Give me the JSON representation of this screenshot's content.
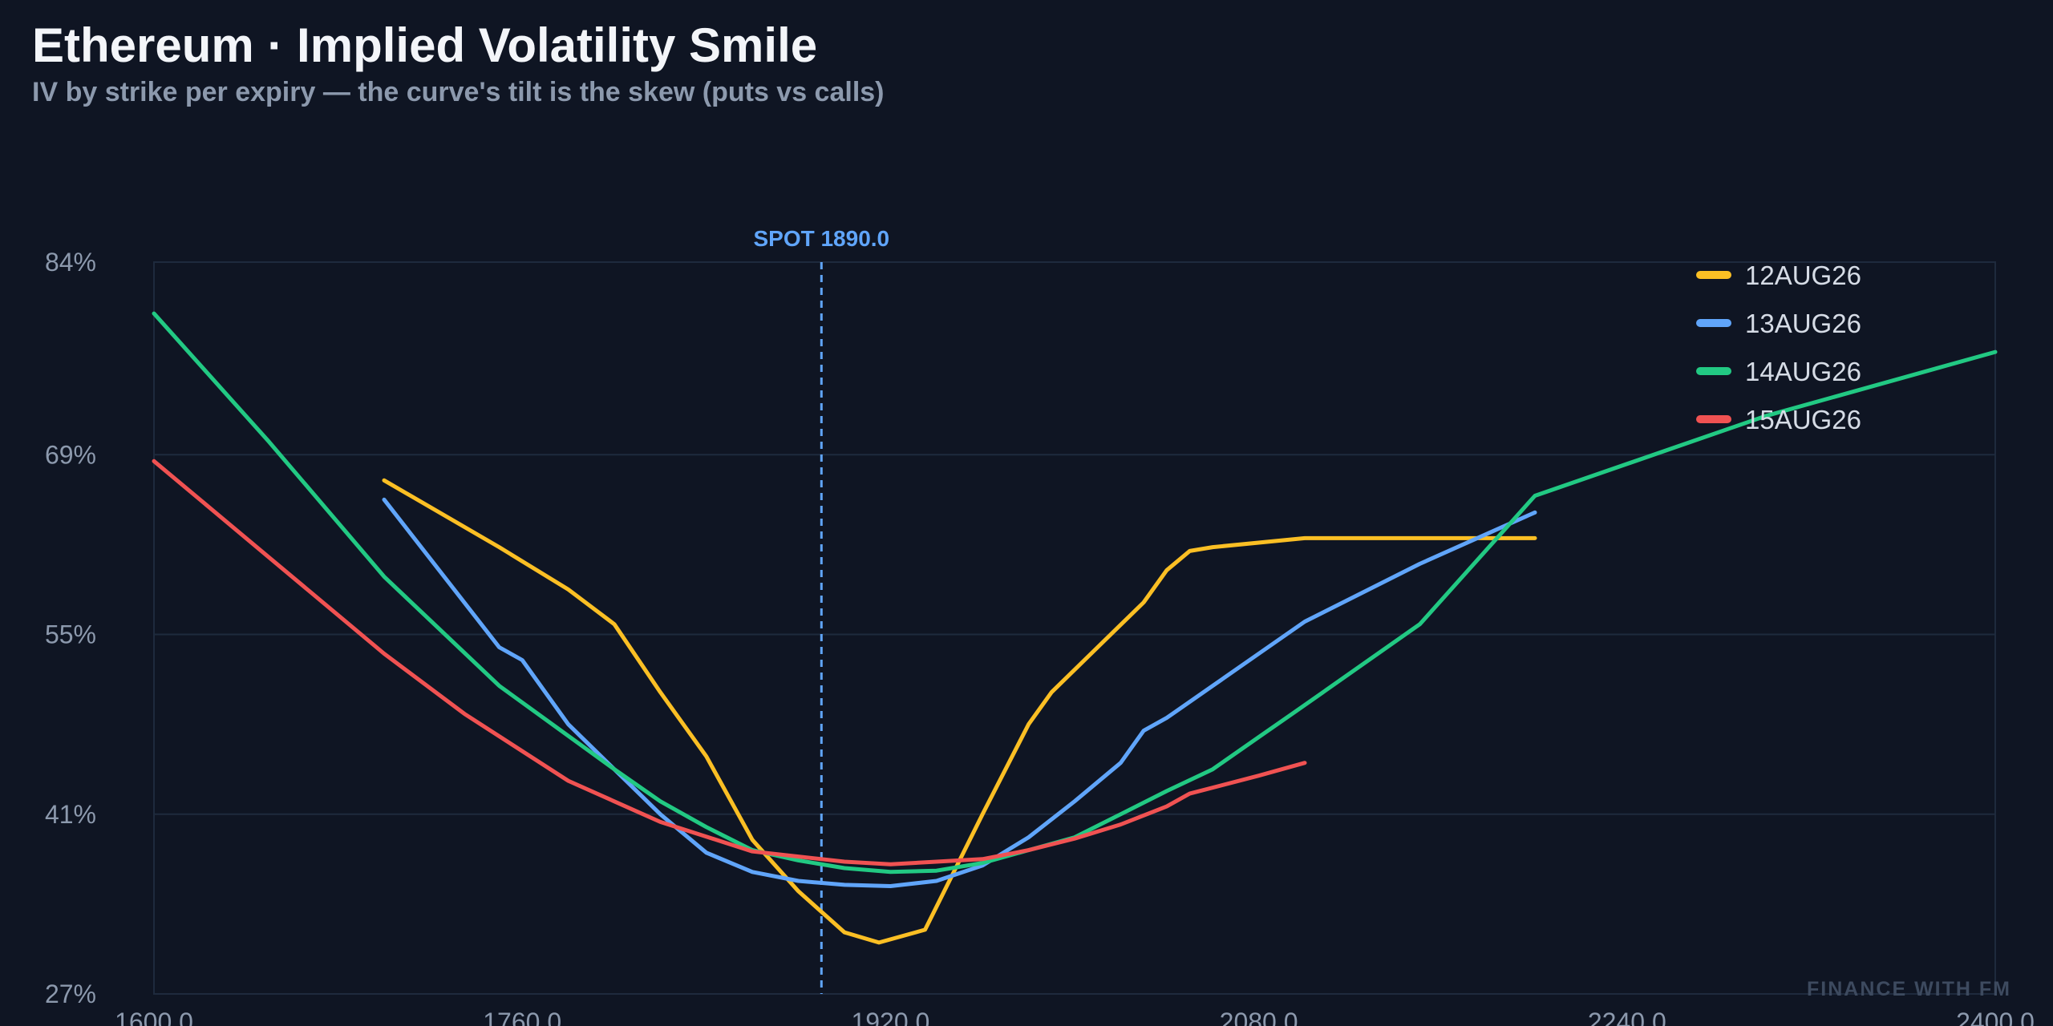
{
  "title": "Ethereum · Implied Volatility Smile",
  "subtitle": "IV by strike per expiry — the curve's tilt is the skew (puts vs calls)",
  "watermark": "FINANCE WITH FM",
  "chart_data": {
    "type": "line",
    "title": "Ethereum · Implied Volatility Smile",
    "subtitle": "IV by strike per expiry — the curve's tilt is the skew (puts vs calls)",
    "xlabel": "",
    "ylabel": "",
    "xlim": [
      1600,
      2400
    ],
    "ylim": [
      27,
      84
    ],
    "x_ticks": [
      1600,
      1760,
      1920,
      2080,
      2240,
      2400
    ],
    "x_tick_labels": [
      "1600.0",
      "1760.0",
      "1920.0",
      "2080.0",
      "2240.0",
      "2400.0"
    ],
    "y_ticks": [
      27,
      41,
      55,
      69,
      84
    ],
    "y_tick_labels": [
      "27%",
      "41%",
      "55%",
      "69%",
      "84%"
    ],
    "grid": true,
    "legend_position": "top-right",
    "spot": {
      "value": 1890.0,
      "label": "SPOT 1890.0",
      "color": "#60a5fa"
    },
    "series": [
      {
        "name": "12AUG26",
        "color": "#fbbf24",
        "x": [
          1700,
          1750,
          1780,
          1800,
          1820,
          1840,
          1860,
          1880,
          1900,
          1915,
          1935,
          1960,
          1980,
          1990,
          2010,
          2030,
          2040,
          2050,
          2060,
          2100,
          2150,
          2200
        ],
        "y": [
          67,
          61.8,
          58.5,
          55.8,
          50.5,
          45.5,
          39,
          35,
          31.8,
          31,
          32,
          41,
          48,
          50.5,
          54,
          57.5,
          60,
          61.5,
          61.8,
          62.5,
          62.5,
          62.5
        ]
      },
      {
        "name": "13AUG26",
        "color": "#60a5fa",
        "x": [
          1700,
          1750,
          1760,
          1780,
          1800,
          1820,
          1840,
          1860,
          1880,
          1900,
          1920,
          1940,
          1960,
          1980,
          2000,
          2020,
          2030,
          2040,
          2060,
          2080,
          2100,
          2150,
          2200
        ],
        "y": [
          65.5,
          54,
          53,
          48,
          44.5,
          41,
          38,
          36.5,
          35.8,
          35.5,
          35.4,
          35.8,
          37,
          39.2,
          42,
          45,
          47.5,
          48.5,
          51,
          53.5,
          56,
          60.5,
          64.5
        ]
      },
      {
        "name": "14AUG26",
        "color": "#22c983",
        "x": [
          1600,
          1650,
          1700,
          1750,
          1800,
          1820,
          1840,
          1860,
          1880,
          1900,
          1920,
          1940,
          1960,
          1980,
          2000,
          2020,
          2040,
          2060,
          2080,
          2100,
          2150,
          2200,
          2300,
          2400
        ],
        "y": [
          80,
          70,
          59.5,
          51,
          44.5,
          42,
          40,
          38.2,
          37.4,
          36.8,
          36.5,
          36.6,
          37.2,
          38.2,
          39.2,
          41,
          42.8,
          44.5,
          47,
          49.5,
          55.8,
          65.8,
          72,
          77
        ]
      },
      {
        "name": "15AUG26",
        "color": "#f05252",
        "x": [
          1600,
          1650,
          1700,
          1735,
          1780,
          1820,
          1860,
          1900,
          1920,
          1940,
          1960,
          1980,
          2000,
          2020,
          2040,
          2050,
          2080,
          2100
        ],
        "y": [
          68.5,
          61,
          53.5,
          48.8,
          43.6,
          40.4,
          38.1,
          37.3,
          37.1,
          37.3,
          37.5,
          38.2,
          39.1,
          40.2,
          41.6,
          42.6,
          44,
          45
        ]
      }
    ]
  }
}
